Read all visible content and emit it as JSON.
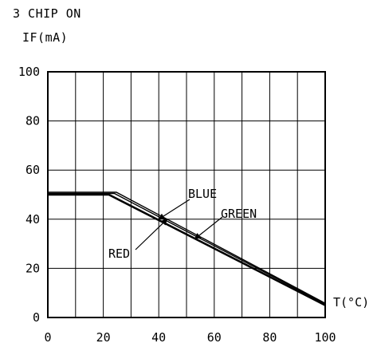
{
  "chart_data": {
    "type": "line",
    "title": "3 CHIP ON",
    "ylabel": "IF(mA)",
    "xlabel": "T(°C)",
    "xlim": [
      0,
      100
    ],
    "ylim": [
      0,
      100
    ],
    "x_ticks": [
      "0",
      "20",
      "40",
      "60",
      "80",
      "100"
    ],
    "y_ticks": [
      "0",
      "20",
      "40",
      "60",
      "80",
      "100"
    ],
    "grid": true,
    "series": [
      {
        "name": "BLUE",
        "x": [
          0,
          25,
          100
        ],
        "y": [
          50,
          50,
          5
        ]
      },
      {
        "name": "GREEN",
        "x": [
          0,
          24,
          100
        ],
        "y": [
          50,
          50,
          5
        ]
      },
      {
        "name": "RED",
        "x": [
          0,
          22,
          100
        ],
        "y": [
          50,
          50,
          5
        ]
      }
    ],
    "annotations": [
      {
        "text": "BLUE",
        "points_to": [
          40,
          40
        ]
      },
      {
        "text": "GREEN",
        "points_to": [
          53,
          32
        ]
      },
      {
        "text": "RED",
        "points_to": [
          43,
          40
        ]
      }
    ],
    "colors": {
      "line": "#000000",
      "grid": "#000000",
      "background": "#ffffff"
    }
  }
}
